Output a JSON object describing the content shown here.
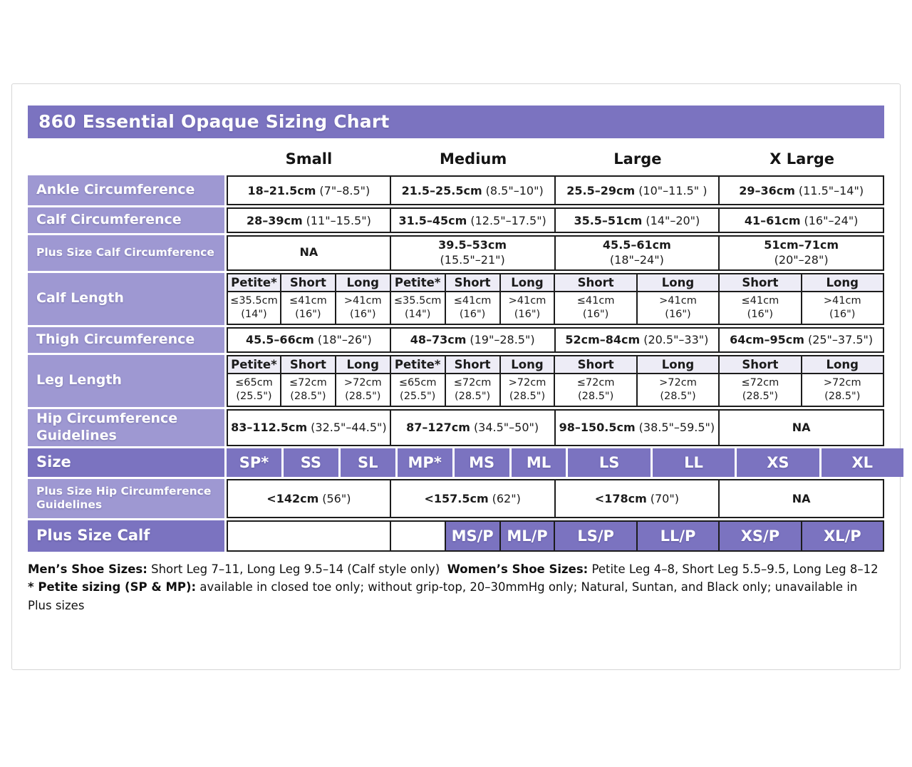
{
  "title": "860 Essential Opaque Sizing Chart",
  "columns": [
    "Small",
    "Medium",
    "Large",
    "X Large"
  ],
  "rows": {
    "ankle": {
      "label": "Ankle Circumference",
      "values": [
        {
          "cm": "18–21.5cm",
          "in": "(7\"–8.5\")"
        },
        {
          "cm": "21.5–25.5cm",
          "in": "(8.5\"–10\")"
        },
        {
          "cm": "25.5–29cm",
          "in": "(10\"–11.5\" )"
        },
        {
          "cm": "29–36cm",
          "in": "(11.5\"–14\")"
        }
      ]
    },
    "calf": {
      "label": "Calf Circumference",
      "values": [
        {
          "cm": "28–39cm",
          "in": "(11\"–15.5\")"
        },
        {
          "cm": "31.5–45cm",
          "in": "(12.5\"–17.5\")"
        },
        {
          "cm": "35.5–51cm",
          "in": "(14\"–20\")"
        },
        {
          "cm": "41–61cm",
          "in": "(16\"–24\")"
        }
      ]
    },
    "plus_calf_circ": {
      "label": "Plus Size Calf Circumference",
      "values": [
        {
          "cm": "NA",
          "in": ""
        },
        {
          "cm": "39.5–53cm",
          "in": "(15.5\"–21\")"
        },
        {
          "cm": "45.5–61cm",
          "in": "(18\"–24\")"
        },
        {
          "cm": "51cm–71cm",
          "in": "(20\"–28\")"
        }
      ]
    },
    "calf_length": {
      "label": "Calf Length",
      "subheaders": [
        "Petite*",
        "Short",
        "Long",
        "Petite*",
        "Short",
        "Long",
        "Short",
        "Long",
        "Short",
        "Long"
      ],
      "values": [
        {
          "v": "≤35.5cm",
          "note": "(14\")"
        },
        {
          "v": "≤41cm",
          "note": "(16\")"
        },
        {
          "v": ">41cm",
          "note": "(16\")"
        },
        {
          "v": "≤35.5cm",
          "note": "(14\")"
        },
        {
          "v": "≤41cm",
          "note": "(16\")"
        },
        {
          "v": ">41cm",
          "note": "(16\")"
        },
        {
          "v": "≤41cm",
          "note": "(16\")"
        },
        {
          "v": ">41cm",
          "note": "(16\")"
        },
        {
          "v": "≤41cm",
          "note": "(16\")"
        },
        {
          "v": ">41cm",
          "note": "(16\")"
        }
      ]
    },
    "thigh": {
      "label": "Thigh Circumference",
      "values": [
        {
          "cm": "45.5–66cm",
          "in": "(18\"–26\")"
        },
        {
          "cm": "48–73cm",
          "in": "(19\"–28.5\")"
        },
        {
          "cm": "52cm–84cm",
          "in": "(20.5\"–33\")"
        },
        {
          "cm": "64cm–95cm",
          "in": "(25\"–37.5\")"
        }
      ]
    },
    "leg_length": {
      "label": "Leg Length",
      "subheaders": [
        "Petite*",
        "Short",
        "Long",
        "Petite*",
        "Short",
        "Long",
        "Short",
        "Long",
        "Short",
        "Long"
      ],
      "values": [
        {
          "v": "≤65cm",
          "note": "(25.5\")"
        },
        {
          "v": "≤72cm",
          "note": "(28.5\")"
        },
        {
          "v": ">72cm",
          "note": "(28.5\")"
        },
        {
          "v": "≤65cm",
          "note": "(25.5\")"
        },
        {
          "v": "≤72cm",
          "note": "(28.5\")"
        },
        {
          "v": ">72cm",
          "note": "(28.5\")"
        },
        {
          "v": "≤72cm",
          "note": "(28.5\")"
        },
        {
          "v": ">72cm",
          "note": "(28.5\")"
        },
        {
          "v": "≤72cm",
          "note": "(28.5\")"
        },
        {
          "v": ">72cm",
          "note": "(28.5\")"
        }
      ]
    },
    "hip": {
      "label": "Hip Circumference Guidelines",
      "values": [
        {
          "cm": "83–112.5cm",
          "in": "(32.5\"–44.5\")"
        },
        {
          "cm": "87–127cm",
          "in": "(34.5\"–50\")"
        },
        {
          "cm": "98–150.5cm",
          "in": "(38.5\"–59.5\")"
        },
        {
          "cm": "NA",
          "in": ""
        }
      ]
    },
    "size": {
      "label": "Size",
      "values": [
        "SP*",
        "SS",
        "SL",
        "MP*",
        "MS",
        "ML",
        "LS",
        "LL",
        "XS",
        "XL"
      ]
    },
    "plus_hip": {
      "label": "Plus Size Hip Circumference Guidelines",
      "values": [
        {
          "cm": "<142cm",
          "in": "(56\")"
        },
        {
          "cm": "<157.5cm",
          "in": "(62\")"
        },
        {
          "cm": "<178cm",
          "in": "(70\")"
        },
        {
          "cm": "NA",
          "in": ""
        }
      ]
    },
    "plus_size_calf": {
      "label": "Plus Size Calf",
      "values": [
        "MS/P",
        "ML/P",
        "LS/P",
        "LL/P",
        "XS/P",
        "XL/P"
      ]
    }
  },
  "footer": {
    "mens_label": "Men’s Shoe Sizes:",
    "mens_text": " Short Leg 7–11, Long Leg 9.5–14 (Calf style only)",
    "womens_label": "Women’s Shoe Sizes:",
    "womens_text": " Petite Leg 4–8, Short Leg 5.5–9.5, Long Leg 8–12",
    "note_label": "* Petite sizing (SP & MP):",
    "note_text": " available in closed toe only; without grip-top, 20–30mmHg only; Natural, Suntan, and Black only; unavailable in Plus sizes"
  },
  "colors": {
    "header_purple": "#7b73c0",
    "label_lavender": "#9e98d2",
    "subheader_lavender": "#edecf6",
    "border_dark": "#1c1c1c"
  }
}
